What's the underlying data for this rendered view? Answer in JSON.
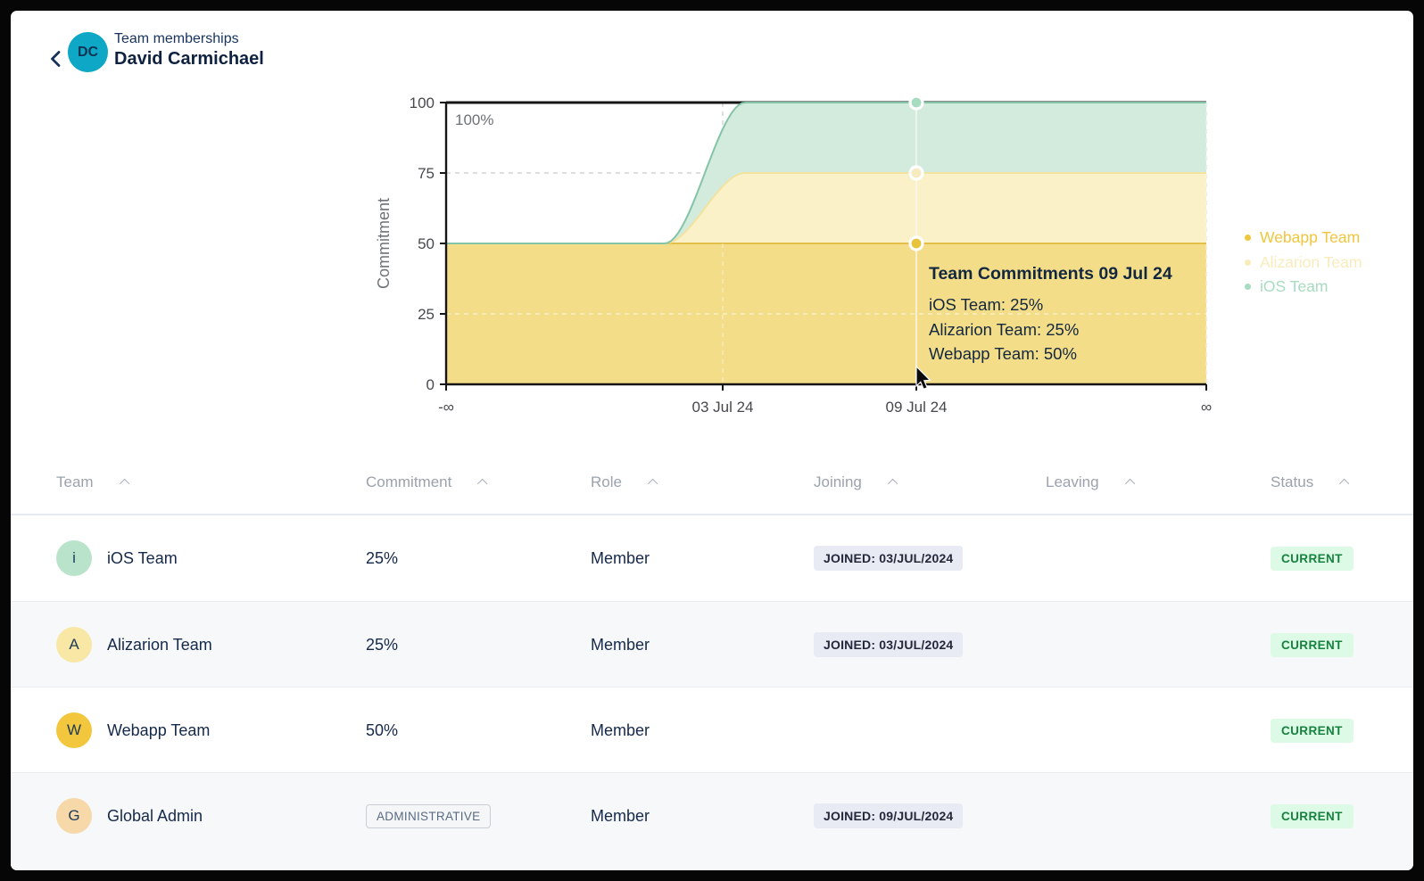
{
  "header": {
    "eyebrow": "Team memberships",
    "title": "David Carmichael",
    "avatar_initials": "DC",
    "avatar_color": "#0fa7c6"
  },
  "icons": {
    "back": "chevron-left",
    "sort": "caret-up",
    "cursor": "mouse-pointer"
  },
  "chart_data": {
    "type": "area",
    "stacked": true,
    "title": "",
    "ylabel": "Commitment",
    "xlabel": "",
    "ylim": [
      0,
      100
    ],
    "yticks": [
      0,
      25,
      50,
      75,
      100
    ],
    "xticks": [
      "-∞",
      "03 Jul 24",
      "09 Jul 24",
      "∞"
    ],
    "grid": true,
    "max_line_label": "100%",
    "transition_x": "03 Jul 24",
    "hover_x": "09 Jul 24",
    "series": [
      {
        "name": "Webapp Team",
        "before": 50,
        "after": 50,
        "fill": "#f3dd88",
        "edge": "#e3be48",
        "legend_color": "#f0c63f",
        "marker": "#e8c43c"
      },
      {
        "name": "Alizarion Team",
        "before": 0,
        "after": 25,
        "fill": "#faf1c9",
        "edge": "#f2e3a0",
        "legend_color": "#f8ecbc",
        "marker": "#f6ebc0"
      },
      {
        "name": "iOS Team",
        "before": 0,
        "after": 25,
        "fill": "#d2ebdd",
        "edge": "#84c4a6",
        "legend_color": "#a8dcc1",
        "marker": "#a8dcc1"
      }
    ],
    "legend": [
      "Webapp Team",
      "Alizarion Team",
      "iOS Team"
    ],
    "legend_position": "right",
    "tooltip": {
      "title": "Team Commitments 09 Jul 24",
      "lines": [
        "iOS Team: 25%",
        "Alizarion Team: 25%",
        "Webapp Team: 50%"
      ]
    }
  },
  "table": {
    "columns": [
      "Team",
      "Commitment",
      "Role",
      "Joining",
      "Leaving",
      "Status"
    ],
    "rows": [
      {
        "team": "iOS Team",
        "avatar_letter": "i",
        "avatar_color": "#bae3cb",
        "commitment": "25%",
        "commitment_badge": "",
        "role": "Member",
        "joining": "JOINED: 03/JUL/2024",
        "leaving": "",
        "status": "CURRENT"
      },
      {
        "team": "Alizarion Team",
        "avatar_letter": "A",
        "avatar_color": "#f9e7a5",
        "commitment": "25%",
        "commitment_badge": "",
        "role": "Member",
        "joining": "JOINED: 03/JUL/2024",
        "leaving": "",
        "status": "CURRENT"
      },
      {
        "team": "Webapp Team",
        "avatar_letter": "W",
        "avatar_color": "#f2c73d",
        "commitment": "50%",
        "commitment_badge": "",
        "role": "Member",
        "joining": "",
        "leaving": "",
        "status": "CURRENT"
      },
      {
        "team": "Global Admin",
        "avatar_letter": "G",
        "avatar_color": "#f6d8a9",
        "commitment": "",
        "commitment_badge": "ADMINISTRATIVE",
        "role": "Member",
        "joining": "JOINED: 09/JUL/2024",
        "leaving": "",
        "status": "CURRENT"
      }
    ],
    "status_colors": {
      "bg": "#dcfae6",
      "text": "#17823e"
    }
  }
}
